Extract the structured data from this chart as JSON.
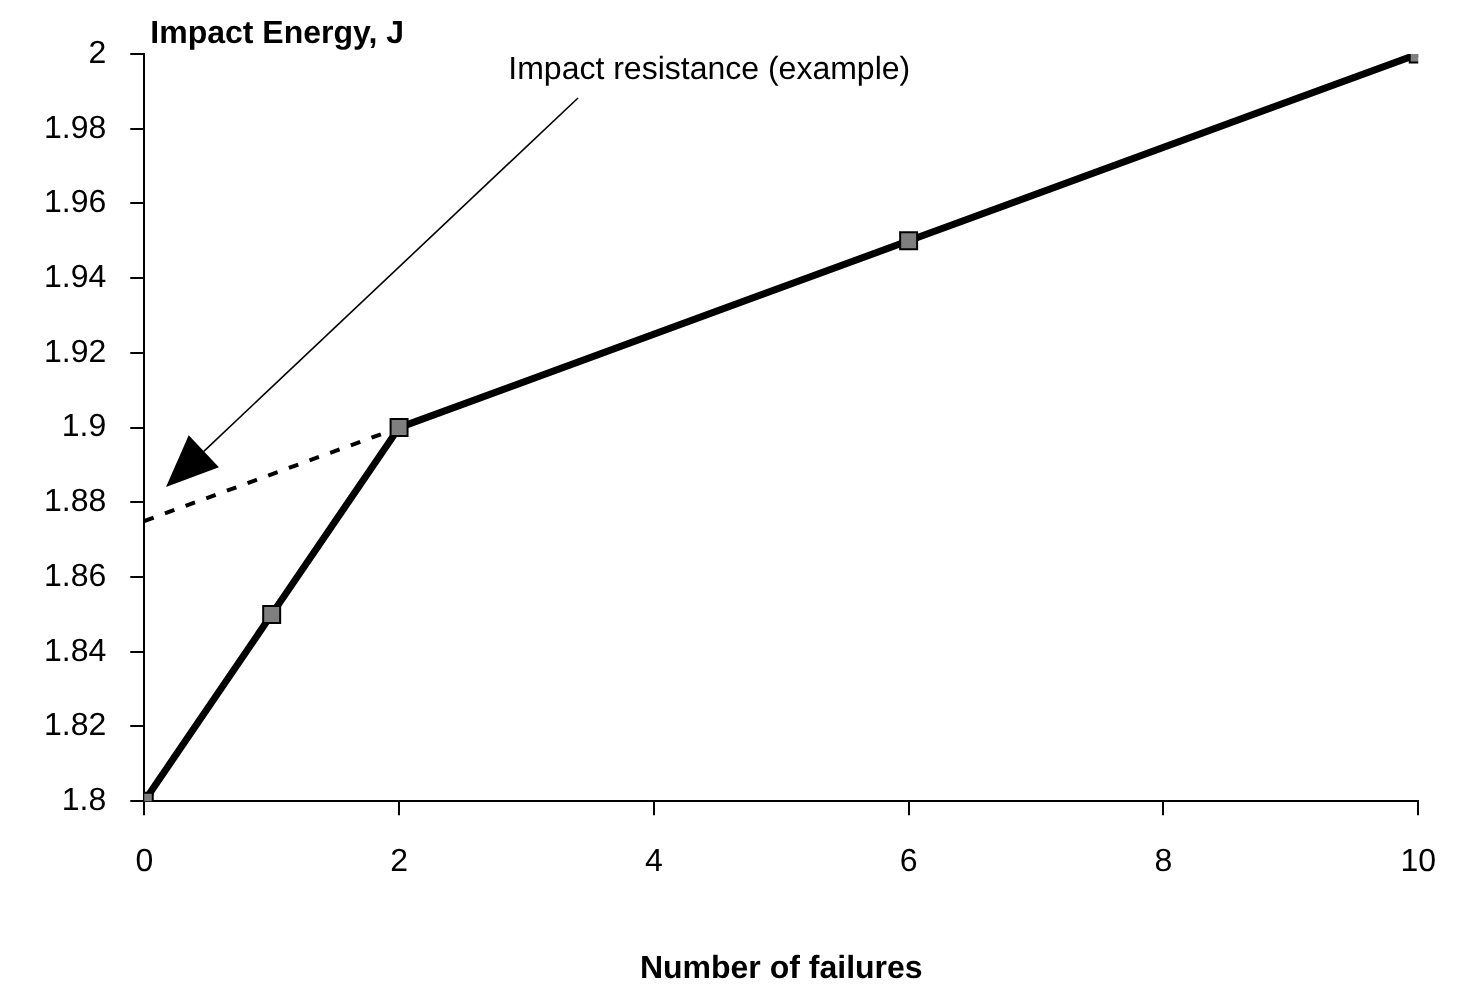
{
  "chart_data": {
    "type": "line",
    "ylabel": "Impact Energy, J",
    "xlabel": "Number of failures",
    "x": [
      0,
      1,
      2,
      6,
      10
    ],
    "series": [
      {
        "color": "#000000",
        "values": [
          1.8,
          1.85,
          1.9,
          1.95,
          2
        ],
        "marker": "square",
        "line_style": "solid"
      },
      {
        "color": "#000000",
        "x": [
          0,
          2
        ],
        "values": [
          1.875,
          1.9
        ],
        "marker": "none",
        "line_style": "dashed"
      }
    ],
    "annotations": [
      "Impact resistance (example)"
    ],
    "xlim": [
      0,
      10
    ],
    "xticks": [
      0,
      2,
      4,
      6,
      8,
      10
    ],
    "ylim": [
      1.8,
      2
    ],
    "yticks": [
      1.8,
      1.82,
      1.84,
      1.86,
      1.88,
      1.9,
      1.92,
      1.94,
      1.96,
      1.98,
      2
    ],
    "grid": false,
    "legend": false
  }
}
